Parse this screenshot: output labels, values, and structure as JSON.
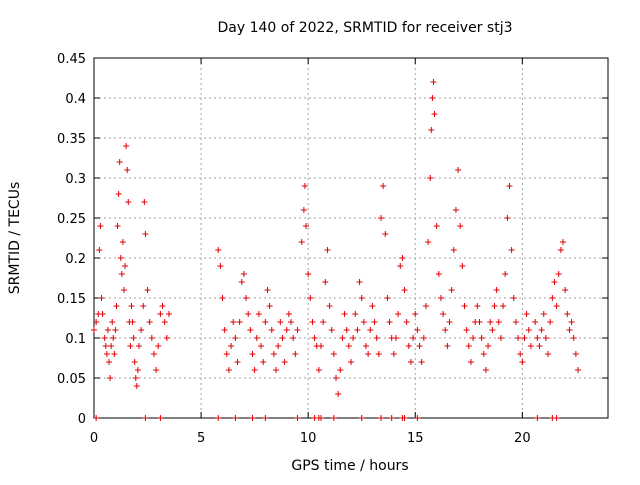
{
  "chart_data": {
    "type": "scatter",
    "title": "Day 140 of 2022, SRMTID for receiver stj3",
    "xlabel": "GPS time / hours",
    "ylabel": "SRMTID / TECUs",
    "xlim": [
      0,
      24
    ],
    "ylim": [
      0,
      0.45
    ],
    "xticks": [
      0,
      5,
      10,
      15,
      20
    ],
    "yticks": [
      0,
      0.05,
      0.1,
      0.15,
      0.2,
      0.25,
      0.3,
      0.35,
      0.4,
      0.45
    ],
    "xtick_labels": [
      "0",
      "5",
      "10",
      "15",
      "20"
    ],
    "ytick_labels": [
      "0",
      "0.05",
      "0.1",
      "0.15",
      "0.2",
      "0.25",
      "0.3",
      "0.35",
      "0.4",
      "0.45"
    ],
    "grid": true,
    "marker": "+",
    "color": "#e00000",
    "series": [
      {
        "values": [
          [
            0.0,
            0.11
          ],
          [
            0.1,
            0.12
          ],
          [
            0.2,
            0.13
          ],
          [
            0.25,
            0.21
          ],
          [
            0.3,
            0.24
          ],
          [
            0.35,
            0.15
          ],
          [
            0.4,
            0.13
          ],
          [
            0.5,
            0.1
          ],
          [
            0.55,
            0.09
          ],
          [
            0.6,
            0.08
          ],
          [
            0.65,
            0.11
          ],
          [
            0.7,
            0.07
          ],
          [
            0.75,
            0.05
          ],
          [
            0.8,
            0.09
          ],
          [
            0.85,
            0.12
          ],
          [
            0.9,
            0.1
          ],
          [
            0.95,
            0.08
          ],
          [
            1.0,
            0.11
          ],
          [
            1.05,
            0.14
          ],
          [
            1.1,
            0.24
          ],
          [
            1.15,
            0.28
          ],
          [
            1.2,
            0.32
          ],
          [
            1.25,
            0.2
          ],
          [
            1.3,
            0.18
          ],
          [
            1.35,
            0.22
          ],
          [
            1.4,
            0.16
          ],
          [
            1.45,
            0.19
          ],
          [
            1.5,
            0.34
          ],
          [
            1.55,
            0.31
          ],
          [
            1.6,
            0.27
          ],
          [
            1.65,
            0.12
          ],
          [
            1.7,
            0.09
          ],
          [
            1.75,
            0.14
          ],
          [
            1.8,
            0.12
          ],
          [
            1.85,
            0.1
          ],
          [
            1.9,
            0.07
          ],
          [
            1.95,
            0.05
          ],
          [
            2.0,
            0.04
          ],
          [
            2.05,
            0.06
          ],
          [
            2.1,
            0.09
          ],
          [
            2.2,
            0.11
          ],
          [
            2.3,
            0.14
          ],
          [
            2.35,
            0.27
          ],
          [
            2.4,
            0.23
          ],
          [
            2.5,
            0.16
          ],
          [
            2.6,
            0.12
          ],
          [
            2.7,
            0.1
          ],
          [
            2.8,
            0.08
          ],
          [
            2.9,
            0.06
          ],
          [
            3.0,
            0.09
          ],
          [
            3.1,
            0.13
          ],
          [
            3.2,
            0.14
          ],
          [
            3.3,
            0.12
          ],
          [
            3.4,
            0.1
          ],
          [
            3.5,
            0.13
          ],
          [
            5.8,
            0.21
          ],
          [
            5.9,
            0.19
          ],
          [
            6.0,
            0.15
          ],
          [
            6.1,
            0.11
          ],
          [
            6.2,
            0.08
          ],
          [
            6.3,
            0.06
          ],
          [
            6.4,
            0.09
          ],
          [
            6.5,
            0.12
          ],
          [
            6.6,
            0.1
          ],
          [
            6.7,
            0.07
          ],
          [
            6.8,
            0.12
          ],
          [
            6.9,
            0.17
          ],
          [
            7.0,
            0.18
          ],
          [
            7.1,
            0.15
          ],
          [
            7.2,
            0.13
          ],
          [
            7.3,
            0.11
          ],
          [
            7.4,
            0.08
          ],
          [
            7.5,
            0.06
          ],
          [
            7.6,
            0.1
          ],
          [
            7.7,
            0.13
          ],
          [
            7.8,
            0.09
          ],
          [
            7.9,
            0.07
          ],
          [
            8.0,
            0.12
          ],
          [
            8.1,
            0.16
          ],
          [
            8.2,
            0.14
          ],
          [
            8.3,
            0.11
          ],
          [
            8.4,
            0.08
          ],
          [
            8.5,
            0.06
          ],
          [
            8.6,
            0.09
          ],
          [
            8.7,
            0.12
          ],
          [
            8.8,
            0.1
          ],
          [
            8.9,
            0.07
          ],
          [
            9.0,
            0.11
          ],
          [
            9.1,
            0.13
          ],
          [
            9.2,
            0.12
          ],
          [
            9.3,
            0.1
          ],
          [
            9.4,
            0.08
          ],
          [
            9.5,
            0.11
          ],
          [
            9.7,
            0.22
          ],
          [
            9.8,
            0.26
          ],
          [
            9.85,
            0.29
          ],
          [
            9.9,
            0.24
          ],
          [
            10.0,
            0.18
          ],
          [
            10.1,
            0.15
          ],
          [
            10.2,
            0.12
          ],
          [
            10.3,
            0.1
          ],
          [
            10.4,
            0.09
          ],
          [
            10.5,
            0.06
          ],
          [
            10.6,
            0.09
          ],
          [
            10.7,
            0.12
          ],
          [
            10.8,
            0.17
          ],
          [
            10.9,
            0.21
          ],
          [
            11.0,
            0.14
          ],
          [
            11.1,
            0.11
          ],
          [
            11.2,
            0.08
          ],
          [
            11.3,
            0.05
          ],
          [
            11.4,
            0.03
          ],
          [
            11.5,
            0.06
          ],
          [
            11.6,
            0.1
          ],
          [
            11.7,
            0.13
          ],
          [
            11.8,
            0.11
          ],
          [
            11.9,
            0.09
          ],
          [
            12.0,
            0.07
          ],
          [
            12.1,
            0.1
          ],
          [
            12.2,
            0.13
          ],
          [
            12.3,
            0.11
          ],
          [
            12.4,
            0.17
          ],
          [
            12.5,
            0.15
          ],
          [
            12.6,
            0.12
          ],
          [
            12.7,
            0.09
          ],
          [
            12.8,
            0.08
          ],
          [
            12.9,
            0.11
          ],
          [
            13.0,
            0.14
          ],
          [
            13.1,
            0.12
          ],
          [
            13.2,
            0.1
          ],
          [
            13.3,
            0.08
          ],
          [
            13.4,
            0.25
          ],
          [
            13.5,
            0.29
          ],
          [
            13.6,
            0.23
          ],
          [
            13.7,
            0.15
          ],
          [
            13.8,
            0.12
          ],
          [
            13.9,
            0.1
          ],
          [
            14.0,
            0.08
          ],
          [
            14.1,
            0.1
          ],
          [
            14.2,
            0.13
          ],
          [
            14.3,
            0.19
          ],
          [
            14.4,
            0.2
          ],
          [
            14.5,
            0.16
          ],
          [
            14.6,
            0.12
          ],
          [
            14.7,
            0.09
          ],
          [
            14.8,
            0.07
          ],
          [
            14.9,
            0.1
          ],
          [
            15.0,
            0.13
          ],
          [
            15.1,
            0.11
          ],
          [
            15.2,
            0.09
          ],
          [
            15.3,
            0.07
          ],
          [
            15.4,
            0.1
          ],
          [
            15.5,
            0.14
          ],
          [
            15.6,
            0.22
          ],
          [
            15.7,
            0.3
          ],
          [
            15.75,
            0.36
          ],
          [
            15.8,
            0.4
          ],
          [
            15.85,
            0.42
          ],
          [
            15.9,
            0.38
          ],
          [
            16.0,
            0.24
          ],
          [
            16.1,
            0.18
          ],
          [
            16.2,
            0.15
          ],
          [
            16.3,
            0.13
          ],
          [
            16.4,
            0.11
          ],
          [
            16.5,
            0.09
          ],
          [
            16.6,
            0.12
          ],
          [
            16.7,
            0.16
          ],
          [
            16.8,
            0.21
          ],
          [
            16.9,
            0.26
          ],
          [
            17.0,
            0.31
          ],
          [
            17.1,
            0.24
          ],
          [
            17.2,
            0.19
          ],
          [
            17.3,
            0.14
          ],
          [
            17.4,
            0.11
          ],
          [
            17.5,
            0.09
          ],
          [
            17.6,
            0.07
          ],
          [
            17.7,
            0.1
          ],
          [
            17.8,
            0.12
          ],
          [
            17.9,
            0.14
          ],
          [
            18.0,
            0.12
          ],
          [
            18.1,
            0.1
          ],
          [
            18.2,
            0.08
          ],
          [
            18.3,
            0.06
          ],
          [
            18.4,
            0.09
          ],
          [
            18.5,
            0.12
          ],
          [
            18.6,
            0.11
          ],
          [
            18.7,
            0.14
          ],
          [
            18.8,
            0.16
          ],
          [
            18.9,
            0.12
          ],
          [
            19.0,
            0.1
          ],
          [
            19.1,
            0.14
          ],
          [
            19.2,
            0.18
          ],
          [
            19.3,
            0.25
          ],
          [
            19.4,
            0.29
          ],
          [
            19.5,
            0.21
          ],
          [
            19.6,
            0.15
          ],
          [
            19.7,
            0.12
          ],
          [
            19.8,
            0.1
          ],
          [
            19.9,
            0.08
          ],
          [
            20.0,
            0.07
          ],
          [
            20.1,
            0.1
          ],
          [
            20.2,
            0.13
          ],
          [
            20.3,
            0.11
          ],
          [
            20.4,
            0.09
          ],
          [
            20.6,
            0.12
          ],
          [
            20.7,
            0.1
          ],
          [
            20.8,
            0.09
          ],
          [
            20.9,
            0.11
          ],
          [
            21.0,
            0.13
          ],
          [
            21.1,
            0.1
          ],
          [
            21.2,
            0.08
          ],
          [
            21.3,
            0.12
          ],
          [
            21.4,
            0.15
          ],
          [
            21.5,
            0.17
          ],
          [
            21.6,
            0.14
          ],
          [
            21.7,
            0.18
          ],
          [
            21.8,
            0.21
          ],
          [
            21.9,
            0.22
          ],
          [
            22.0,
            0.16
          ],
          [
            22.1,
            0.13
          ],
          [
            22.2,
            0.11
          ],
          [
            22.3,
            0.12
          ],
          [
            22.4,
            0.1
          ],
          [
            22.5,
            0.08
          ],
          [
            22.6,
            0.06
          ]
        ]
      }
    ],
    "zero_markers_x": [
      0.1,
      2.4,
      3.1,
      5.8,
      6.6,
      7.4,
      8.0,
      9.5,
      10.3,
      10.5,
      10.6,
      11.2,
      12.5,
      13.4,
      13.9,
      14.4,
      14.5,
      15.1,
      20.7,
      21.4,
      21.6
    ]
  }
}
